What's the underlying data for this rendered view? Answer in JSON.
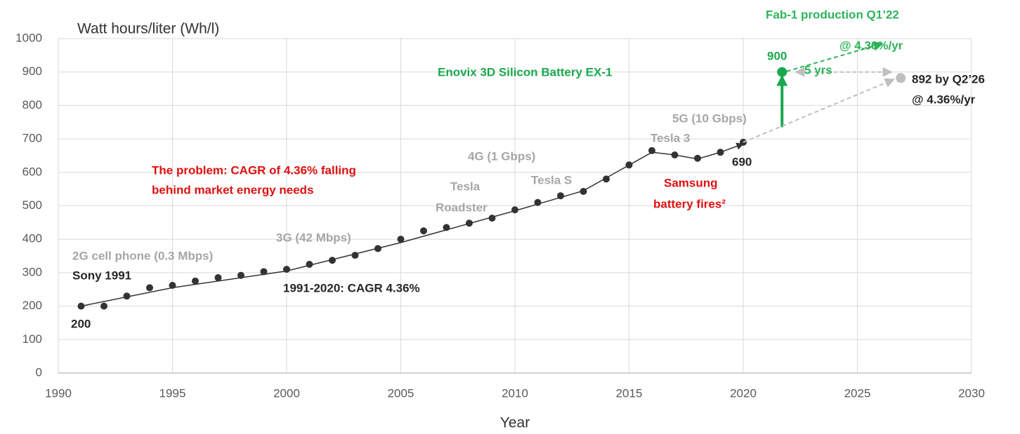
{
  "chart_data": {
    "type": "scatter",
    "ylabel": "Watt hours/liter (Wh/l)",
    "xlabel": "Year",
    "xlim": [
      1990,
      2030
    ],
    "xticks": [
      1990,
      1995,
      2000,
      2005,
      2010,
      2015,
      2020,
      2025,
      2030
    ],
    "ylim": [
      0,
      1000
    ],
    "yticks": [
      0,
      100,
      200,
      300,
      400,
      500,
      600,
      700,
      800,
      900,
      1000
    ],
    "grid": true,
    "series": [
      {
        "style": "points",
        "color": "#333333",
        "x": [
          1991,
          1992,
          1993,
          1994,
          1995,
          1996,
          1997,
          1998,
          1999,
          2000,
          2001,
          2002,
          2003,
          2004,
          2005,
          2006,
          2007,
          2008,
          2009,
          2010,
          2011,
          2012,
          2013,
          2014,
          2015,
          2016,
          2017,
          2018,
          2019,
          2020
        ],
        "values": [
          200,
          200,
          230,
          255,
          262,
          275,
          285,
          292,
          303,
          310,
          325,
          337,
          352,
          372,
          400,
          425,
          435,
          448,
          463,
          488,
          510,
          530,
          543,
          580,
          622,
          665,
          652,
          642,
          660,
          690
        ]
      },
      {
        "style": "line",
        "color": "#333333",
        "x": [
          1991,
          1995,
          2000,
          2005,
          2010,
          2013,
          2016,
          2017,
          2018,
          2019,
          2020
        ],
        "values": [
          200,
          255,
          305,
          390,
          485,
          545,
          660,
          652,
          640,
          660,
          685
        ]
      },
      {
        "style": "dashed",
        "color": "#bfbfbf",
        "x": [
          2020,
          2026.6
        ],
        "values": [
          690,
          878
        ]
      },
      {
        "style": "dashed",
        "color": "#2db45a",
        "x": [
          2021.9,
          2026.1
        ],
        "values": [
          902,
          985
        ]
      },
      {
        "style": "points",
        "color": "#1aa84e",
        "x": [
          2021.7
        ],
        "values": [
          900
        ]
      },
      {
        "style": "points",
        "color": "#bfbfbf",
        "x": [
          2026.9
        ],
        "values": [
          882
        ]
      }
    ],
    "annotations": [
      {
        "text": "Fab-1 production Q1’22",
        "color": "#2db45a"
      },
      {
        "text": "@ 4.36%/yr",
        "color": "#2db45a"
      },
      {
        "text": "Enovix 3D Silicon Battery EX-1",
        "color": "#1aa84e"
      },
      {
        "text": "5 yrs",
        "color": "#2db45a"
      },
      {
        "text": "892 by Q2’26",
        "color": "#262626"
      },
      {
        "text": "@ 4.36%/yr",
        "color": "#262626"
      },
      {
        "text": "5G (10 Gbps)",
        "color": "#a6a6a6"
      },
      {
        "text": "Tesla 3",
        "color": "#a6a6a6"
      },
      {
        "text": "Samsung",
        "color": "#e01010"
      },
      {
        "text": "battery fires²",
        "color": "#e01010"
      },
      {
        "text": "4G (1 Gbps)",
        "color": "#a6a6a6"
      },
      {
        "text": "Tesla S",
        "color": "#a6a6a6"
      },
      {
        "text": "Tesla",
        "color": "#a6a6a6"
      },
      {
        "text": "Roadster",
        "color": "#a6a6a6"
      },
      {
        "text": "The problem: CAGR of 4.36% falling",
        "color": "#e01010"
      },
      {
        "text": "behind market energy needs",
        "color": "#e01010"
      },
      {
        "text": "3G (42 Mbps)",
        "color": "#a6a6a6"
      },
      {
        "text": "2G cell phone (0.3 Mbps)",
        "color": "#a6a6a6"
      },
      {
        "text": "Sony 1991",
        "color": "#262626"
      },
      {
        "text": "1991-2020: CAGR 4.36%",
        "color": "#262626"
      }
    ]
  }
}
